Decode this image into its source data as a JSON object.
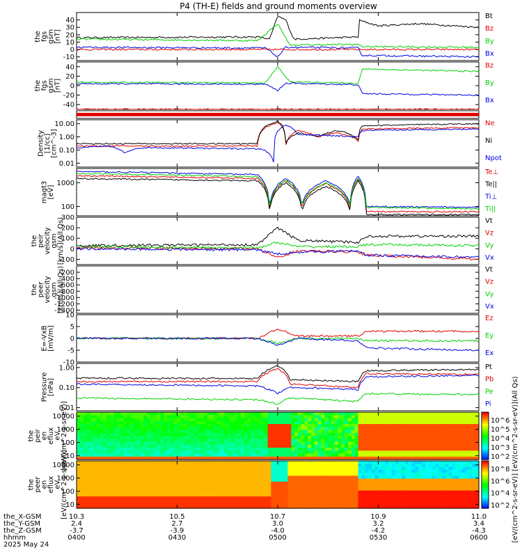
{
  "title": "P4 (TH-E) fields and ground moments overview",
  "colors": {
    "black": "#000000",
    "red": "#e00000",
    "green": "#00d000",
    "blue": "#0000e0"
  },
  "chart_data": [
    {
      "type": "line",
      "panel": "fgs",
      "ylabel": [
        "the",
        "fgs",
        "gsm",
        "[nT]"
      ],
      "yticks": [
        "40",
        "30",
        "20",
        "10",
        "0",
        "-10"
      ],
      "ylim": [
        -15,
        50
      ],
      "legend": [
        "Bt",
        "Bz",
        "By",
        "Bx"
      ],
      "legend_colors": [
        "black",
        "red",
        "green",
        "blue"
      ]
    },
    {
      "type": "line",
      "panel": "fgs_gsm",
      "ylabel": [
        "the",
        "fgs",
        "gsm",
        "[nT]"
      ],
      "yticks": [
        "40",
        "20",
        "0",
        "-20",
        "-40"
      ],
      "ylim": [
        -50,
        50
      ],
      "legend": [
        "Bz",
        "By",
        "Bx"
      ],
      "legend_colors": [
        "red",
        "green",
        "blue"
      ]
    },
    {
      "type": "bar",
      "panel": "mode_bar"
    },
    {
      "type": "line",
      "panel": "density",
      "ylabel": [
        "Density",
        "[1/cc]",
        "[cm^-3]"
      ],
      "yticks": [
        "10.00",
        "1.00",
        "0.10",
        "0.01"
      ],
      "ylim": [
        0.005,
        20
      ],
      "yscale": "log",
      "legend": [
        "Ne",
        "Ni",
        "Npot"
      ],
      "legend_colors": [
        "red",
        "black",
        "blue"
      ]
    },
    {
      "type": "line",
      "panel": "temperature",
      "ylabel": [
        "magt3",
        "[eV]"
      ],
      "yticks": [
        "1000",
        "100"
      ],
      "ylim": [
        40,
        4000
      ],
      "yscale": "log",
      "legend": [
        "Te⊥",
        "Te||",
        "Ti⊥",
        "Ti||"
      ],
      "legend_colors": [
        "red",
        "black",
        "blue",
        "green"
      ]
    },
    {
      "type": "line",
      "panel": "peir_velocity",
      "ylabel": [
        "the",
        "peir",
        "velocity",
        "gsm",
        "[km/s](All Qs)"
      ],
      "yticks": [
        "300",
        "200",
        "100",
        "0",
        "-100"
      ],
      "ylim": [
        -150,
        300
      ],
      "legend": [
        "Vt",
        "Vz",
        "Vy",
        "Vx"
      ],
      "legend_colors": [
        "black",
        "red",
        "green",
        "blue"
      ]
    },
    {
      "type": "line",
      "panel": "peer_velocity",
      "ylabel": [
        "the",
        "peer",
        "velocity",
        "gsm",
        "[km/s](All Qs)"
      ],
      "yticks": [
        "-200",
        "-400",
        "-600",
        "-800",
        "-1000",
        "-1200",
        "-1400"
      ],
      "ylim": [
        -1500,
        0
      ],
      "legend": [
        "Vt",
        "Vz",
        "Vy",
        "Vx"
      ],
      "legend_colors": [
        "black",
        "red",
        "green",
        "blue"
      ]
    },
    {
      "type": "line",
      "panel": "efield",
      "ylabel": [
        "E=-VxB",
        "[mV/m]"
      ],
      "yticks": [
        "10",
        "5",
        "0",
        "-5",
        "-10"
      ],
      "ylim": [
        -10,
        10
      ],
      "legend": [
        "Ez",
        "Ey",
        "Ex"
      ],
      "legend_colors": [
        "red",
        "green",
        "blue"
      ]
    },
    {
      "type": "line",
      "panel": "pressure",
      "ylabel": [
        "Pressure",
        "[nPa]"
      ],
      "yticks": [
        "1.00",
        "0.10",
        "0.01"
      ],
      "ylim": [
        0.007,
        1.6
      ],
      "yscale": "log",
      "legend": [
        "Pt",
        "Pb",
        "Pe",
        "Pi"
      ],
      "legend_colors": [
        "black",
        "red",
        "green",
        "blue"
      ]
    },
    {
      "type": "heatmap",
      "panel": "peir_spectrum",
      "ylabel": [
        "the",
        "peir",
        "en",
        "eflux",
        "eV",
        "[eV/(cm^2-s-sr-eV)]"
      ],
      "yticks": [
        "10000",
        "1000",
        "100",
        "10"
      ],
      "ylim": [
        5,
        20000
      ],
      "yscale": "log"
    },
    {
      "type": "heatmap",
      "panel": "peer_spectrum",
      "ylabel": [
        "the",
        "peer",
        "en",
        "eflux",
        "eV",
        "[eV/(cm^2-s-sr-eV)]"
      ],
      "yticks": [
        "10000",
        "1000",
        "100",
        "10"
      ],
      "ylim": [
        5,
        20000
      ],
      "yscale": "log"
    }
  ],
  "colorbar": {
    "label": "[eV/(cm^2-s-sr-eV)] [eV/(cm^2-s-sr-eV)](All Qs)",
    "ion_ticks": [
      "10^6",
      "10^5",
      "10^4",
      "10^3",
      "10^2"
    ],
    "electron_ticks": [
      "10^8",
      "10^6",
      "10^4",
      "10^2"
    ]
  },
  "x_axis": {
    "rows": [
      {
        "label": "the_X-GSM",
        "values": [
          "10.3",
          "10.5",
          "10.7",
          "10.9",
          "11.0"
        ]
      },
      {
        "label": "the_Y-GSM",
        "values": [
          "2.4",
          "2.7",
          "3.0",
          "3.2",
          "3.4"
        ]
      },
      {
        "label": "the_Z-GSM",
        "values": [
          "-3.7",
          "-3.9",
          "-4.0",
          "-4.2",
          "-4.3"
        ]
      },
      {
        "label": "hhmm",
        "values": [
          "0400",
          "0430",
          "0500",
          "0530",
          "0600"
        ]
      }
    ],
    "date": "2025 May 24"
  }
}
